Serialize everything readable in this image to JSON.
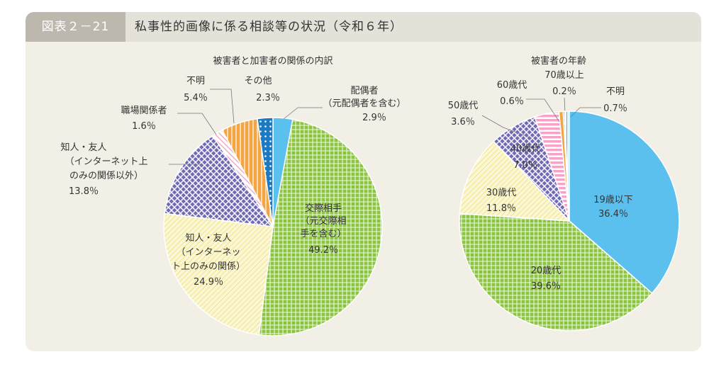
{
  "header": {
    "figure_label": "図表２－21",
    "title": "私事性的画像に係る相談等の状況（令和６年）"
  },
  "chart_data": [
    {
      "type": "pie",
      "title": "被害者と加害者の関係の内訳",
      "slices": [
        {
          "label": [
            "配偶者",
            "（元配偶者を含む）"
          ],
          "value": 2.9,
          "value_label": "2.9％",
          "color": "#5bc0ee",
          "pattern": "solid"
        },
        {
          "label": [
            "交際相手",
            "（元交際相",
            "手を含む）"
          ],
          "value": 49.2,
          "value_label": "49.2％",
          "color": "#8cc540",
          "pattern": "grid"
        },
        {
          "label": [
            "知人・友人",
            "（インターネッ",
            "ト上のみの関係）"
          ],
          "value": 24.9,
          "value_label": "24.9％",
          "color": "#f7f0b4",
          "pattern": "hatch"
        },
        {
          "label": [
            "知人・友人",
            "（インターネット上",
            "のみの関係以外）"
          ],
          "value": 13.8,
          "value_label": "13.8％",
          "color": "#8a84c4",
          "pattern": "cross"
        },
        {
          "label": [
            "職場関係者"
          ],
          "value": 1.6,
          "value_label": "1.6％",
          "color": "#f5a3c6",
          "pattern": "diag"
        },
        {
          "label": [
            "不明"
          ],
          "value": 5.4,
          "value_label": "5.4％",
          "color": "#f3a541",
          "pattern": "vstripe"
        },
        {
          "label": [
            "その他"
          ],
          "value": 2.3,
          "value_label": "2.3％",
          "color": "#1c7ac2",
          "pattern": "dots"
        }
      ]
    },
    {
      "type": "pie",
      "title": "被害者の年齢",
      "slices": [
        {
          "label": [
            "19歳以下"
          ],
          "value": 36.4,
          "value_label": "36.4％",
          "color": "#5bc0ee",
          "pattern": "solid"
        },
        {
          "label": [
            "20歳代"
          ],
          "value": 39.6,
          "value_label": "39.6％",
          "color": "#8cc540",
          "pattern": "grid"
        },
        {
          "label": [
            "30歳代"
          ],
          "value": 11.8,
          "value_label": "11.8％",
          "color": "#f7f0b4",
          "pattern": "hatch"
        },
        {
          "label": [
            "40歳代"
          ],
          "value": 7.0,
          "value_label": "7.0％",
          "color": "#8a84c4",
          "pattern": "cross"
        },
        {
          "label": [
            "50歳代"
          ],
          "value": 3.6,
          "value_label": "3.6％",
          "color": "#f5a3c6",
          "pattern": "hstripe"
        },
        {
          "label": [
            "60歳代"
          ],
          "value": 0.6,
          "value_label": "0.6％",
          "color": "#f3a541",
          "pattern": "solid"
        },
        {
          "label": [
            "70歳以上"
          ],
          "value": 0.2,
          "value_label": "0.2％",
          "color": "#1c7ac2",
          "pattern": "solid"
        },
        {
          "label": [
            "不明"
          ],
          "value": 0.7,
          "value_label": "0.7％",
          "color": "#8fd3ef",
          "pattern": "vstripe"
        }
      ]
    }
  ]
}
